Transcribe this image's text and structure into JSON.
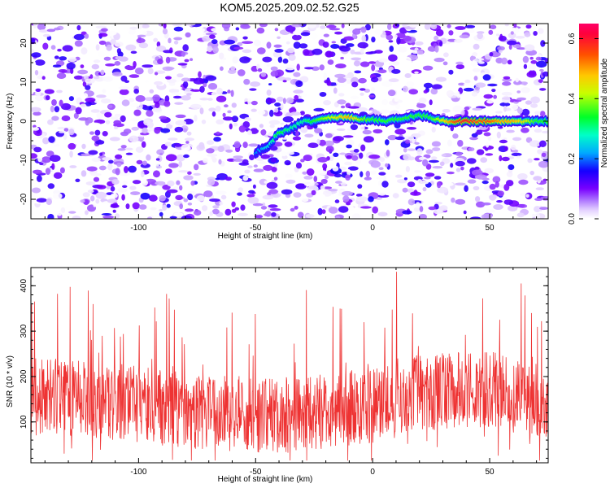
{
  "title": "KOM5.2025.209.02.52.G25",
  "chart_data": [
    {
      "type": "heatmap",
      "xlabel": "Height of straight line (km)",
      "ylabel": "Frequency (Hz)",
      "xlim": [
        -146,
        75
      ],
      "ylim": [
        -25,
        25
      ],
      "xticks": [
        -100,
        -50,
        0,
        50
      ],
      "yticks": [
        -20,
        -10,
        0,
        10,
        20
      ],
      "colorbar": {
        "label": "Normalized spectral amplitude",
        "range": [
          0,
          0.65
        ],
        "ticks": [
          0.0,
          0.2,
          0.4,
          0.6
        ],
        "colormap": [
          "#ffffff",
          "#cc99ff",
          "#7700ff",
          "#0000ff",
          "#00ffff",
          "#00ff00",
          "#ffff00",
          "#ff8800",
          "#ff0000",
          "#ff0066"
        ]
      },
      "signal_track": {
        "x": [
          -146,
          -50,
          -45,
          -40,
          -35,
          -30,
          -25,
          -20,
          -15,
          -10,
          -5,
          0,
          5,
          10,
          15,
          20,
          25,
          30,
          35,
          40,
          45,
          50,
          55,
          60,
          65,
          70,
          75
        ],
        "y": [
          0,
          -8,
          -6.5,
          -3,
          -2,
          0,
          0,
          1,
          1,
          1,
          0.5,
          0.5,
          0,
          0.5,
          1,
          1.5,
          1,
          0,
          0,
          0,
          0,
          0,
          0,
          0,
          0,
          0,
          0
        ],
        "amplitude": [
          0,
          0.2,
          0.25,
          0.35,
          0.3,
          0.3,
          0.35,
          0.4,
          0.45,
          0.5,
          0.4,
          0.35,
          0.35,
          0.35,
          0.35,
          0.35,
          0.35,
          0.45,
          0.55,
          0.6,
          0.55,
          0.55,
          0.5,
          0.5,
          0.45,
          0.35,
          0.35
        ]
      },
      "background": "random noise, normalized amplitude 0–0.1"
    },
    {
      "type": "line",
      "xlabel": "Height of straight line (km)",
      "ylabel": "SNR (10 * v/v)",
      "xlim": [
        -146,
        75
      ],
      "ylim": [
        10,
        440
      ],
      "xticks": [
        -100,
        -50,
        0,
        50
      ],
      "yticks": [
        100,
        200,
        300,
        400
      ],
      "color": "#ee3333",
      "description": "noisy trace, mean ~140, range ~10–440"
    }
  ]
}
